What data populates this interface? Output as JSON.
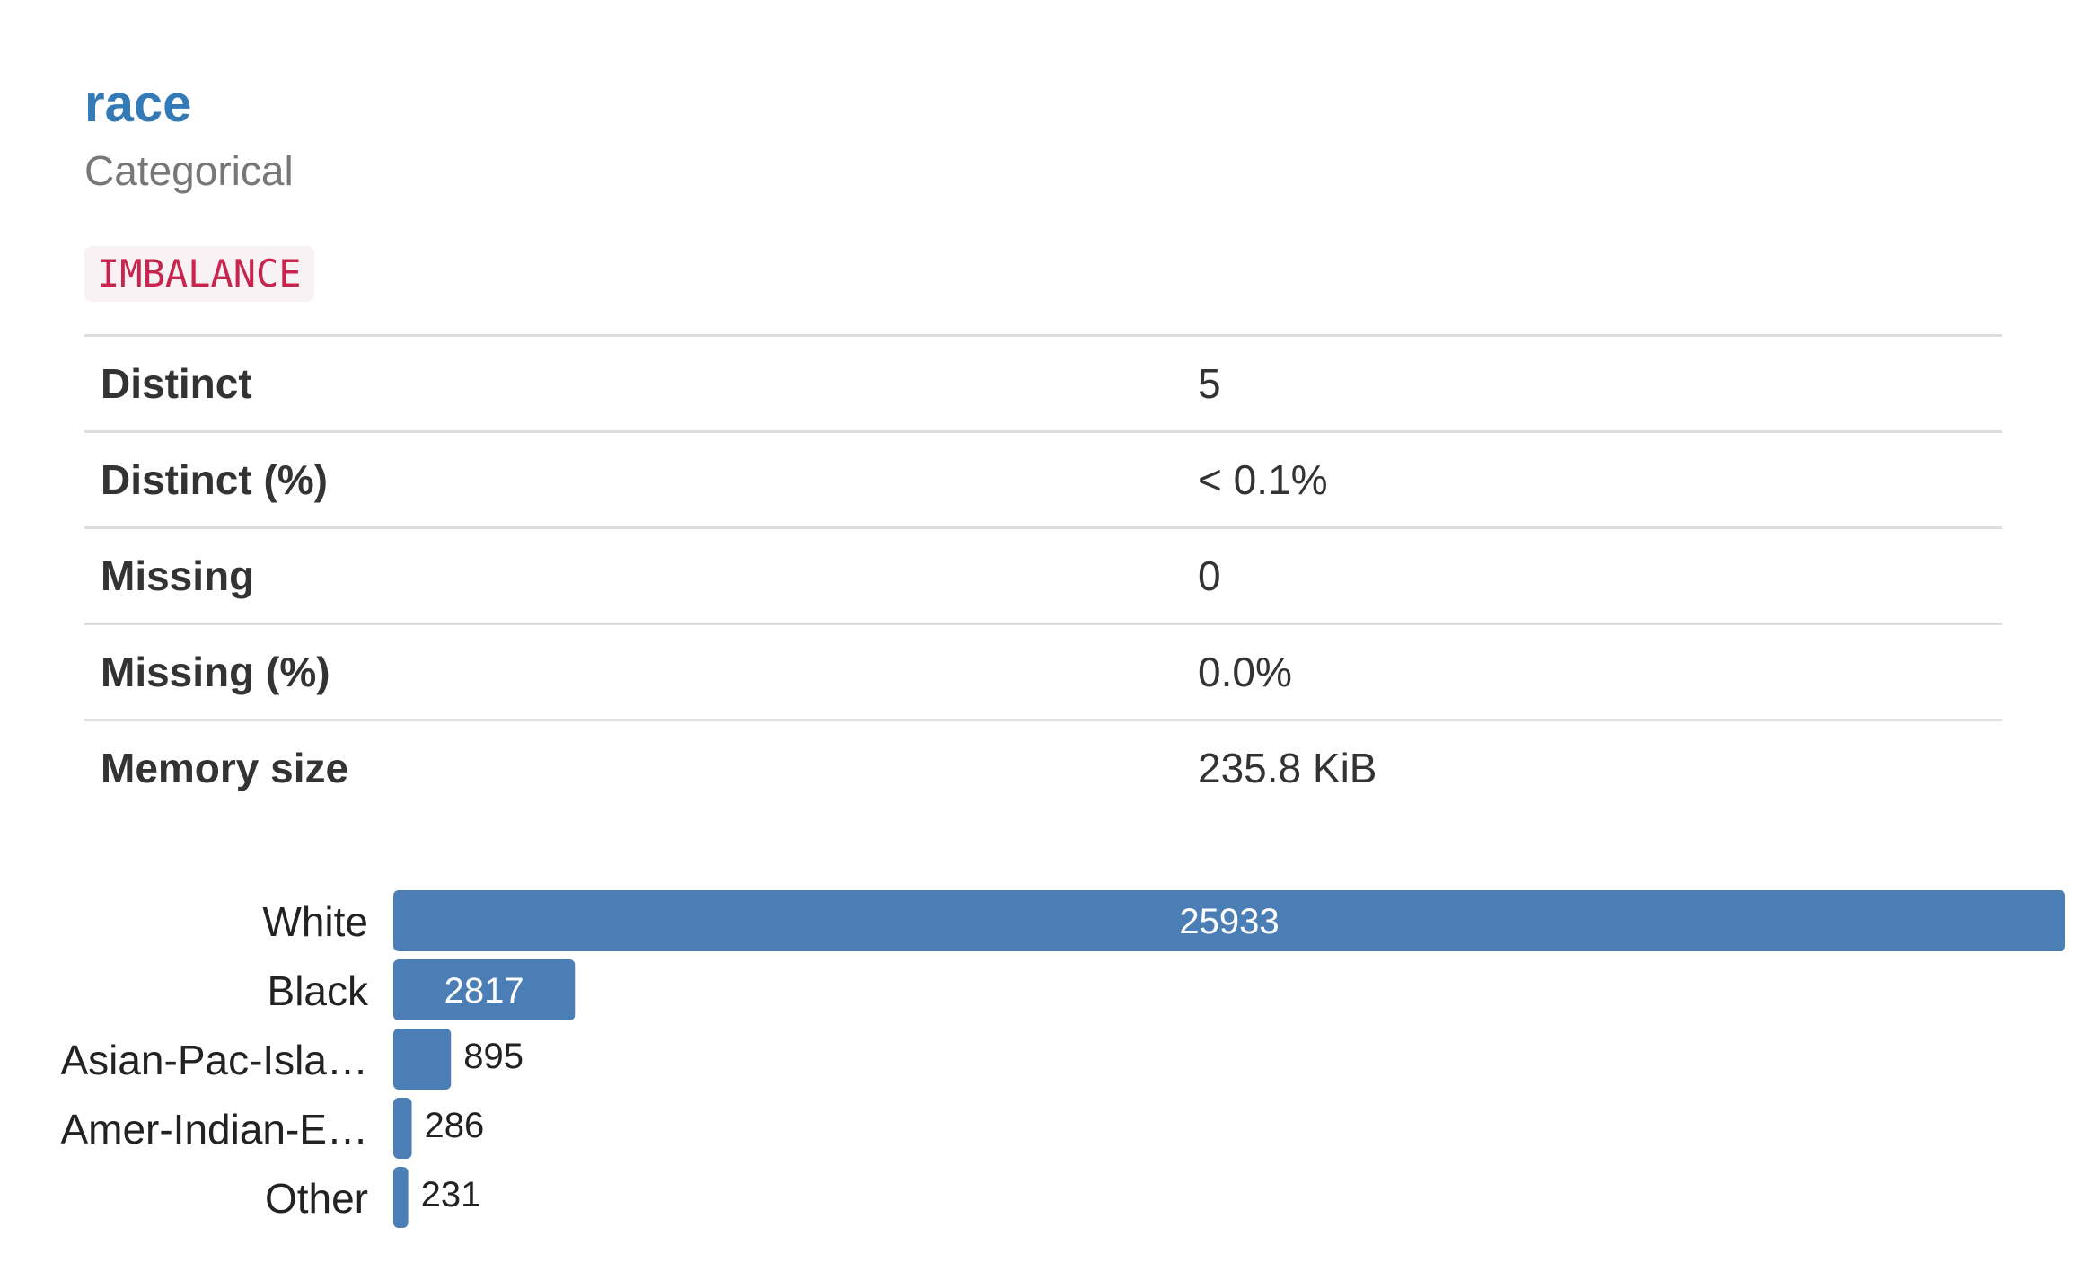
{
  "variable": {
    "name": "race",
    "type": "Categorical",
    "alert": "IMBALANCE"
  },
  "stats": [
    {
      "label": "Distinct",
      "value": "5"
    },
    {
      "label": "Distinct (%)",
      "value": "< 0.1%"
    },
    {
      "label": "Missing",
      "value": "0"
    },
    {
      "label": "Missing (%)",
      "value": "0.0%"
    },
    {
      "label": "Memory size",
      "value": "235.8 KiB"
    }
  ],
  "colors": {
    "title": "#337ab7",
    "bar": "#4a7eb5",
    "badge_text": "#c7254e",
    "badge_bg": "#f9f2f4"
  },
  "chart_data": {
    "type": "bar",
    "orientation": "horizontal",
    "categories": [
      "White",
      "Black",
      "Asian-Pac-Isla…",
      "Amer-Indian-E…",
      "Other"
    ],
    "values": [
      25933,
      2817,
      895,
      286,
      231
    ],
    "xlim": [
      0,
      25933
    ],
    "grid": false,
    "legend": "none"
  }
}
